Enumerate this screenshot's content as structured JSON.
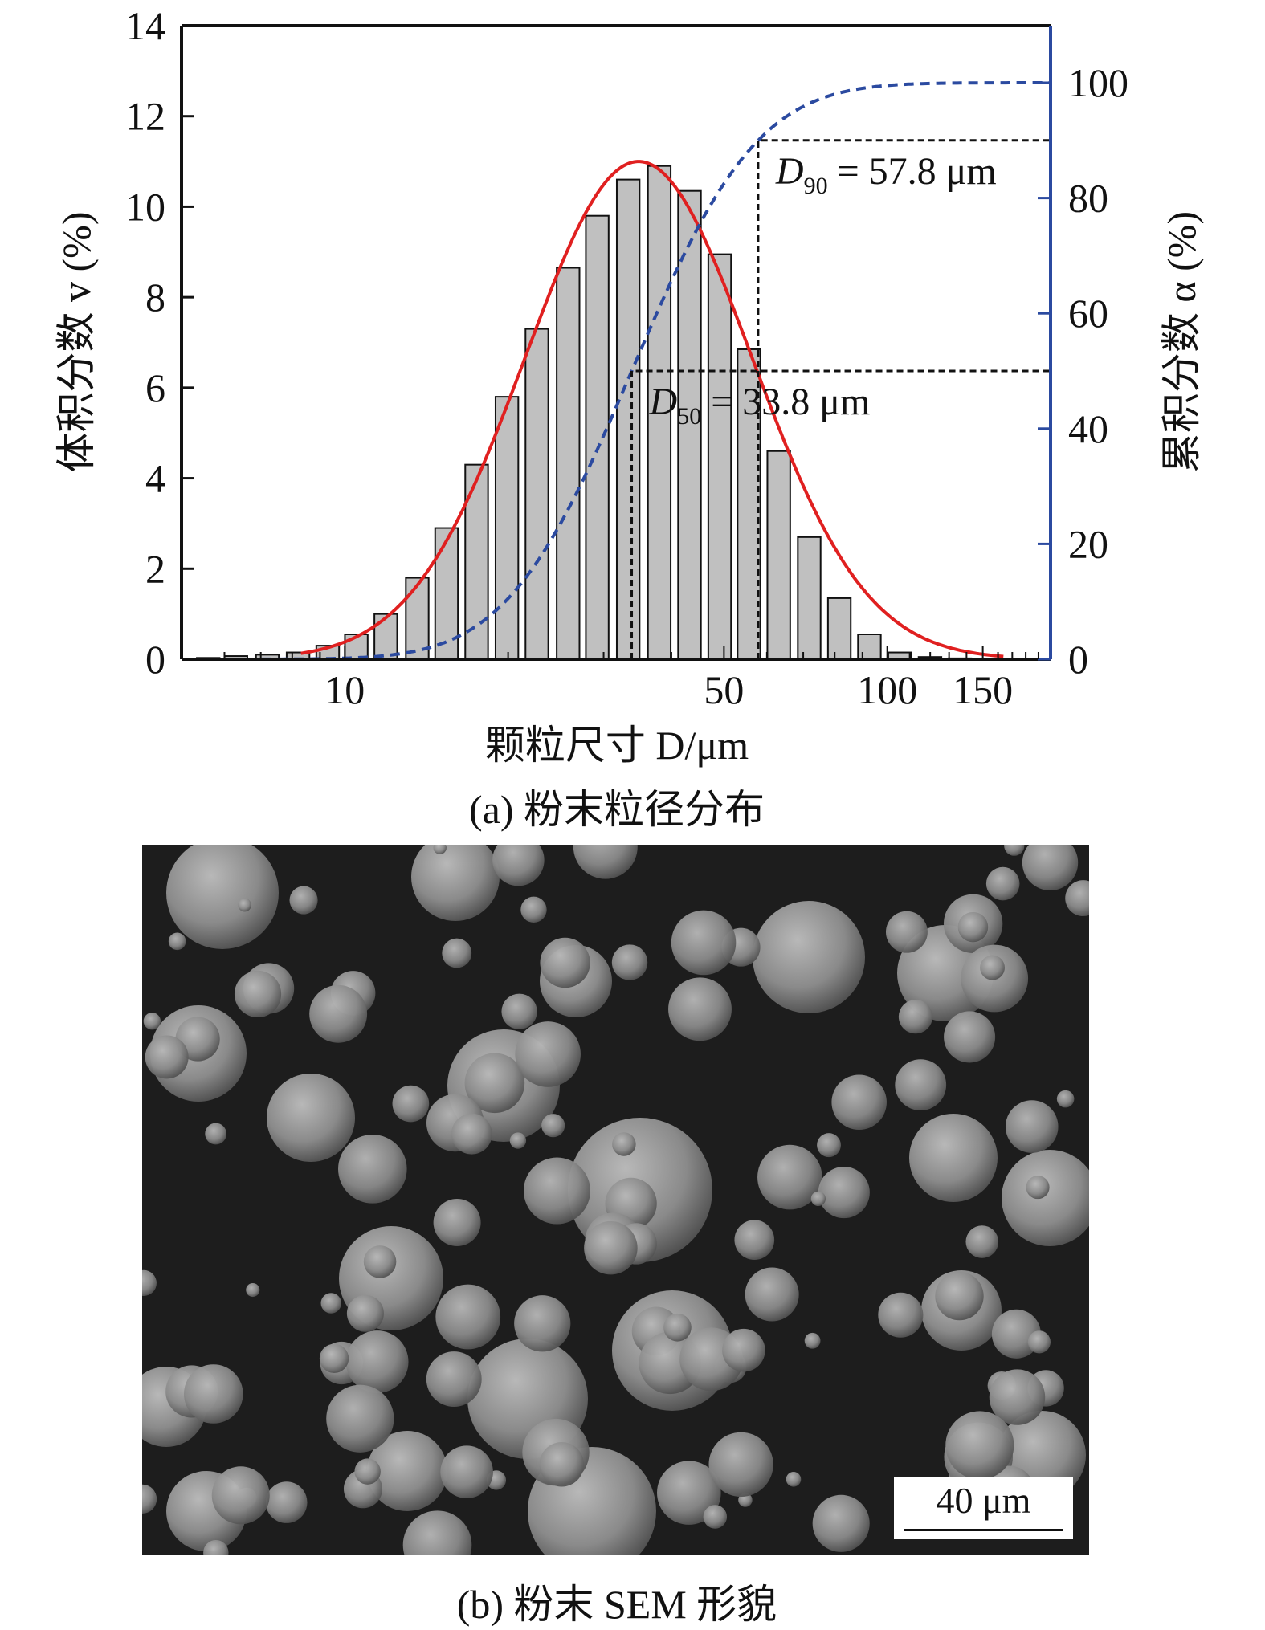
{
  "chart_data": {
    "type": "bar",
    "title": "",
    "xlabel": "颗粒尺寸 D/μm",
    "ylabel_left": "体积分数 v (%)",
    "ylabel_right": "累积分数 α (%)",
    "xscale": "log",
    "xlim": [
      5,
      200
    ],
    "ylim_left": [
      0,
      14
    ],
    "ylim_right": [
      0,
      110
    ],
    "x_ticks": [
      10,
      50,
      100,
      150
    ],
    "x_tick_labels": [
      "10",
      "50",
      "100",
      "150"
    ],
    "y_left_ticks": [
      "0",
      "2",
      "4",
      "6",
      "8",
      "10",
      "12",
      "14"
    ],
    "y_right_ticks": [
      "0",
      "20",
      "40",
      "60",
      "80",
      "100"
    ],
    "bars": {
      "name": "体积分数 v",
      "x": [
        5.6,
        6.3,
        7.2,
        8.2,
        9.3,
        10.5,
        11.9,
        13.6,
        15.4,
        17.5,
        19.9,
        22.6,
        25.8,
        29.2,
        33.3,
        38.0,
        43.2,
        49.1,
        55.6,
        63.1,
        71.8,
        81.6,
        92.7,
        105.4,
        119.9,
        136.1
      ],
      "values": [
        0.03,
        0.07,
        0.1,
        0.15,
        0.3,
        0.55,
        1.0,
        1.8,
        2.9,
        4.3,
        5.8,
        7.3,
        8.65,
        9.8,
        10.6,
        10.9,
        10.35,
        8.95,
        6.85,
        4.6,
        2.7,
        1.35,
        0.55,
        0.15,
        0.05,
        0.02
      ],
      "color": "#c0c0c0"
    },
    "fit_curve": {
      "name": "lognormal fit",
      "peak": 11.0,
      "mode": 34.8,
      "sigma_log10": 0.209,
      "color": "#e02020"
    },
    "cumulative_curve": {
      "name": "累积分数 α",
      "median": 33.8,
      "sigma_log10": 0.182,
      "color": "#2b4aa0"
    },
    "annotations": [
      {
        "name": "D90",
        "x": 57.8,
        "y_cum": 90,
        "label_main": "D",
        "label_sub": "90",
        "label_rest": " = 57.8 μm"
      },
      {
        "name": "D50",
        "x": 33.8,
        "y_cum": 50,
        "label_main": "D",
        "label_sub": "50",
        "label_rest": " = 33.8 μm"
      }
    ],
    "right_axis_color": "#2b4aa0"
  },
  "captions": {
    "a": "(a) 粉末粒径分布",
    "b": "(b) 粉末 SEM 形貌"
  },
  "sem": {
    "scale_bar_label": "40 μm"
  }
}
